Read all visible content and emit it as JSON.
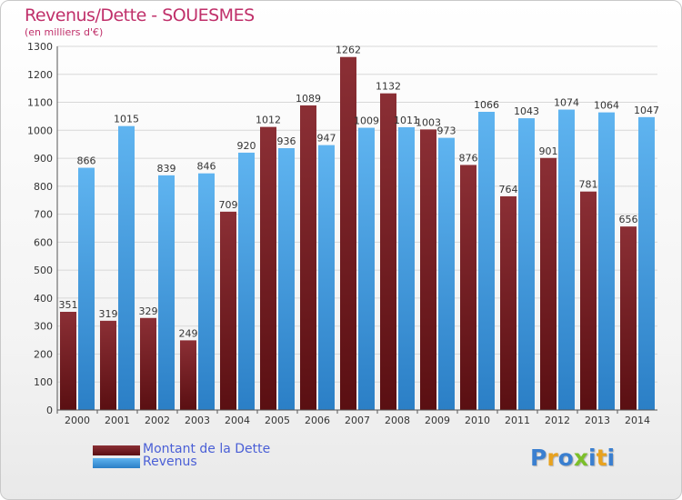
{
  "title": "Revenus/Dette - SOUESMES",
  "subtitle": "(en milliers d'€)",
  "logo": {
    "letters": [
      {
        "char": "P",
        "color": "#3a7fd0"
      },
      {
        "char": "r",
        "color": "#e8a21f"
      },
      {
        "char": "o",
        "color": "#3a7fd0"
      },
      {
        "char": "x",
        "color": "#7cbf2a"
      },
      {
        "char": "i",
        "color": "#3a7fd0"
      },
      {
        "char": "t",
        "color": "#e8a21f"
      },
      {
        "char": "i",
        "color": "#3a7fd0"
      }
    ]
  },
  "colors": {
    "dette_top": "#8b2f35",
    "dette_bottom": "#5a0f12",
    "revenus_top": "#5fb4f0",
    "revenus_bottom": "#2b7fc6"
  },
  "chart_data": {
    "type": "bar",
    "categories": [
      "2000",
      "2001",
      "2002",
      "2003",
      "2004",
      "2005",
      "2006",
      "2007",
      "2008",
      "2009",
      "2010",
      "2011",
      "2012",
      "2013",
      "2014"
    ],
    "series": [
      {
        "name": "Montant de la Dette",
        "values": [
          351,
          319,
          329,
          249,
          709,
          1012,
          1089,
          1262,
          1132,
          1003,
          876,
          764,
          901,
          781,
          656
        ]
      },
      {
        "name": "Revenus",
        "values": [
          866,
          1015,
          839,
          846,
          920,
          936,
          947,
          1009,
          1011,
          973,
          1066,
          1043,
          1074,
          1064,
          1047
        ]
      }
    ],
    "ylim": [
      0,
      1300
    ],
    "yticks": [
      0,
      100,
      200,
      300,
      400,
      500,
      600,
      700,
      800,
      900,
      1000,
      1100,
      1200,
      1300
    ],
    "grid": true,
    "legend": "bottom-left"
  }
}
